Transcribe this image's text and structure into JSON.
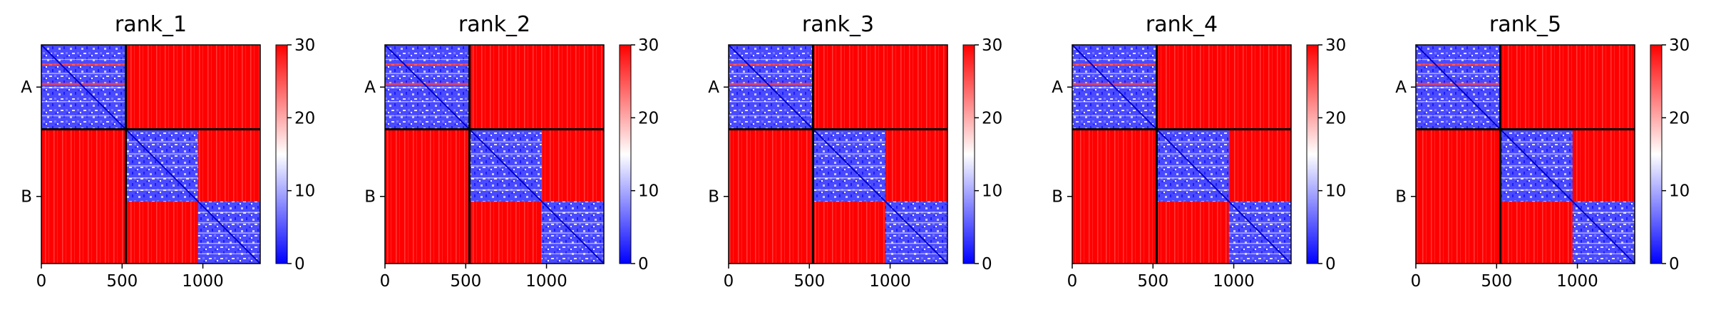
{
  "chart_data": [
    {
      "type": "heatmap",
      "title": "rank_1",
      "xlabel": "",
      "ylabel": "",
      "x_ticks": [
        0,
        500,
        1000
      ],
      "y_tick_labels": [
        "A",
        "B"
      ],
      "chains": [
        {
          "name": "A",
          "start": 0,
          "end": 523
        },
        {
          "name": "B",
          "start": 523,
          "end": 1355
        }
      ],
      "domains": [
        {
          "start": 0,
          "end": 523
        },
        {
          "start": 523,
          "end": 970
        },
        {
          "start": 970,
          "end": 1355
        }
      ],
      "xlim": [
        0,
        1355
      ],
      "value_range": [
        0,
        30
      ],
      "colorbar_ticks": [
        0,
        10,
        20,
        30
      ],
      "colormap": "bwr",
      "grid": false
    },
    {
      "type": "heatmap",
      "title": "rank_2",
      "xlabel": "",
      "ylabel": "",
      "x_ticks": [
        0,
        500,
        1000
      ],
      "y_tick_labels": [
        "A",
        "B"
      ],
      "chains": [
        {
          "name": "A",
          "start": 0,
          "end": 523
        },
        {
          "name": "B",
          "start": 523,
          "end": 1355
        }
      ],
      "domains": [
        {
          "start": 0,
          "end": 523
        },
        {
          "start": 523,
          "end": 970
        },
        {
          "start": 970,
          "end": 1355
        }
      ],
      "xlim": [
        0,
        1355
      ],
      "value_range": [
        0,
        30
      ],
      "colorbar_ticks": [
        0,
        10,
        20,
        30
      ],
      "colormap": "bwr",
      "grid": false
    },
    {
      "type": "heatmap",
      "title": "rank_3",
      "xlabel": "",
      "ylabel": "",
      "x_ticks": [
        0,
        500,
        1000
      ],
      "y_tick_labels": [
        "A",
        "B"
      ],
      "chains": [
        {
          "name": "A",
          "start": 0,
          "end": 523
        },
        {
          "name": "B",
          "start": 523,
          "end": 1355
        }
      ],
      "domains": [
        {
          "start": 0,
          "end": 523
        },
        {
          "start": 523,
          "end": 970
        },
        {
          "start": 970,
          "end": 1355
        }
      ],
      "xlim": [
        0,
        1355
      ],
      "value_range": [
        0,
        30
      ],
      "colorbar_ticks": [
        0,
        10,
        20,
        30
      ],
      "colormap": "bwr",
      "grid": false
    },
    {
      "type": "heatmap",
      "title": "rank_4",
      "xlabel": "",
      "ylabel": "",
      "x_ticks": [
        0,
        500,
        1000
      ],
      "y_tick_labels": [
        "A",
        "B"
      ],
      "chains": [
        {
          "name": "A",
          "start": 0,
          "end": 523
        },
        {
          "name": "B",
          "start": 523,
          "end": 1355
        }
      ],
      "domains": [
        {
          "start": 0,
          "end": 523
        },
        {
          "start": 523,
          "end": 970
        },
        {
          "start": 970,
          "end": 1355
        }
      ],
      "xlim": [
        0,
        1355
      ],
      "value_range": [
        0,
        30
      ],
      "colorbar_ticks": [
        0,
        10,
        20,
        30
      ],
      "colormap": "bwr",
      "grid": false
    },
    {
      "type": "heatmap",
      "title": "rank_5",
      "xlabel": "",
      "ylabel": "",
      "x_ticks": [
        0,
        500,
        1000
      ],
      "y_tick_labels": [
        "A",
        "B"
      ],
      "chains": [
        {
          "name": "A",
          "start": 0,
          "end": 523
        },
        {
          "name": "B",
          "start": 523,
          "end": 1355
        }
      ],
      "domains": [
        {
          "start": 0,
          "end": 523
        },
        {
          "start": 523,
          "end": 970
        },
        {
          "start": 970,
          "end": 1355
        }
      ],
      "xlim": [
        0,
        1355
      ],
      "value_range": [
        0,
        30
      ],
      "colorbar_ticks": [
        0,
        10,
        20,
        30
      ],
      "colormap": "bwr",
      "grid": false
    }
  ]
}
